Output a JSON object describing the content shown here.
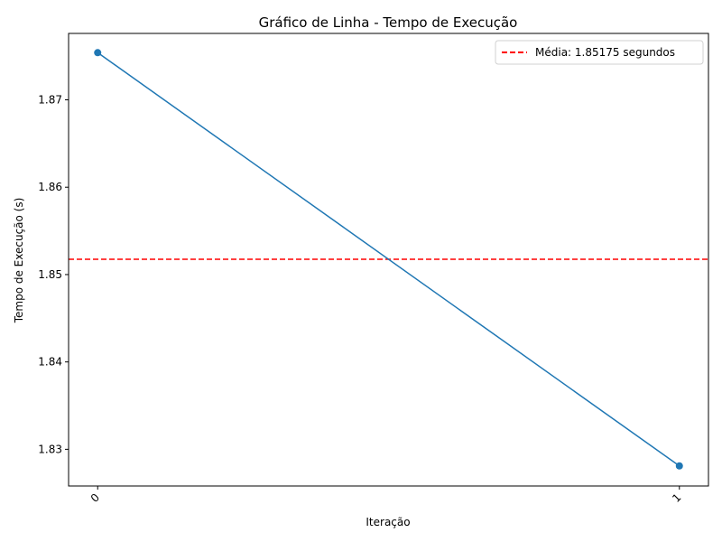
{
  "chart_data": {
    "type": "line",
    "title": "Gráfico de Linha - Tempo de Execução",
    "xlabel": "Iteração",
    "ylabel": "Tempo de Execução (s)",
    "x": [
      0,
      1
    ],
    "x_tick_labels": [
      "0",
      "1"
    ],
    "y_ticks": [
      1.83,
      1.84,
      1.85,
      1.86,
      1.87
    ],
    "y_tick_labels": [
      "1.83",
      "1.84",
      "1.85",
      "1.86",
      "1.87"
    ],
    "xlim": [
      -0.05,
      1.05
    ],
    "ylim": [
      1.8258,
      1.8776
    ],
    "grid": false,
    "series": [
      {
        "values": [
          1.8754,
          1.8281
        ],
        "color": "#1f77b4",
        "marker": "circle"
      }
    ],
    "reference_line": {
      "value": 1.85175,
      "label": "Média: 1.85175 segundos",
      "color": "#ff0000",
      "style": "dashed"
    },
    "legend": {
      "placement": "top-right",
      "entries": [
        "Média: 1.85175 segundos"
      ]
    }
  }
}
